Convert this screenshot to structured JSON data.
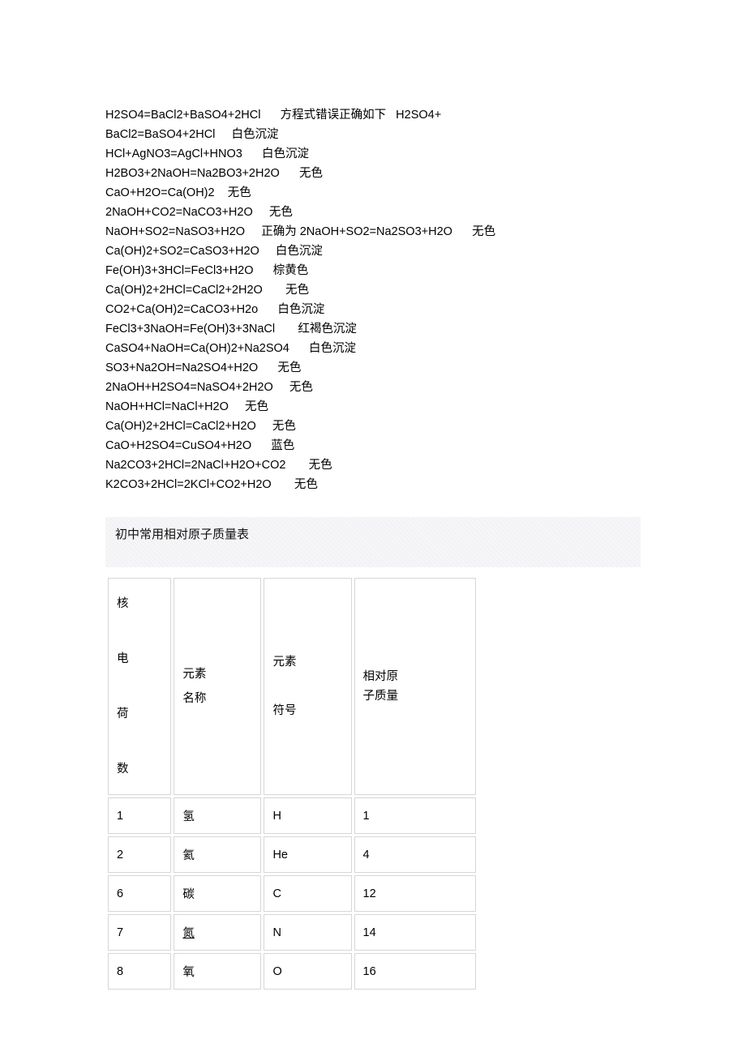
{
  "equations": [
    "H2SO4=BaCl2+BaSO4+2HCl      方程式错误正确如下   H2SO4+",
    "BaCl2=BaSO4+2HCl     白色沉淀",
    "HCl+AgNO3=AgCl+HNO3      白色沉淀",
    "H2BO3+2NaOH=Na2BO3+2H2O      无色",
    "CaO+H2O=Ca(OH)2    无色",
    "2NaOH+CO2=NaCO3+H2O     无色",
    "NaOH+SO2=NaSO3+H2O     正确为 2NaOH+SO2=Na2SO3+H2O      无色",
    "Ca(OH)2+SO2=CaSO3+H2O     白色沉淀",
    "Fe(OH)3+3HCl=FeCl3+H2O      棕黄色",
    "Ca(OH)2+2HCl=CaCl2+2H2O       无色",
    "CO2+Ca(OH)2=CaCO3+H2o      白色沉淀",
    "FeCl3+3NaOH=Fe(OH)3+3NaCl       红褐色沉淀",
    "CaSO4+NaOH=Ca(OH)2+Na2SO4      白色沉淀",
    "SO3+Na2OH=Na2SO4+H2O      无色",
    "2NaOH+H2SO4=NaSO4+2H2O     无色",
    "NaOH+HCl=NaCl+H2O     无色",
    "Ca(OH)2+2HCl=CaCl2+H2O     无色",
    "CaO+H2SO4=CuSO4+H2O      蓝色",
    "Na2CO3+2HCl=2NaCl+H2O+CO2       无色",
    "K2CO3+2HCl=2KCl+CO2+H2O       无色"
  ],
  "table_title": "初中常用相对原子质量表",
  "headers": {
    "col1": "核\n\n电\n\n荷\n\n数",
    "col2": "元素\n名称",
    "col3": "元素\n\n符号",
    "col4": "相对原\n子质量"
  },
  "rows": [
    {
      "z": "1",
      "name": "氢",
      "sym": "H",
      "mass": "1",
      "underline": false
    },
    {
      "z": "2",
      "name": "氦",
      "sym": "He",
      "mass": "4",
      "underline": false
    },
    {
      "z": "6",
      "name": "碳",
      "sym": "C",
      "mass": "12",
      "underline": false
    },
    {
      "z": "7",
      "name": "氮",
      "sym": "N",
      "mass": "14",
      "underline": true
    },
    {
      "z": "8",
      "name": "氧",
      "sym": "O",
      "mass": "16",
      "underline": false
    }
  ]
}
